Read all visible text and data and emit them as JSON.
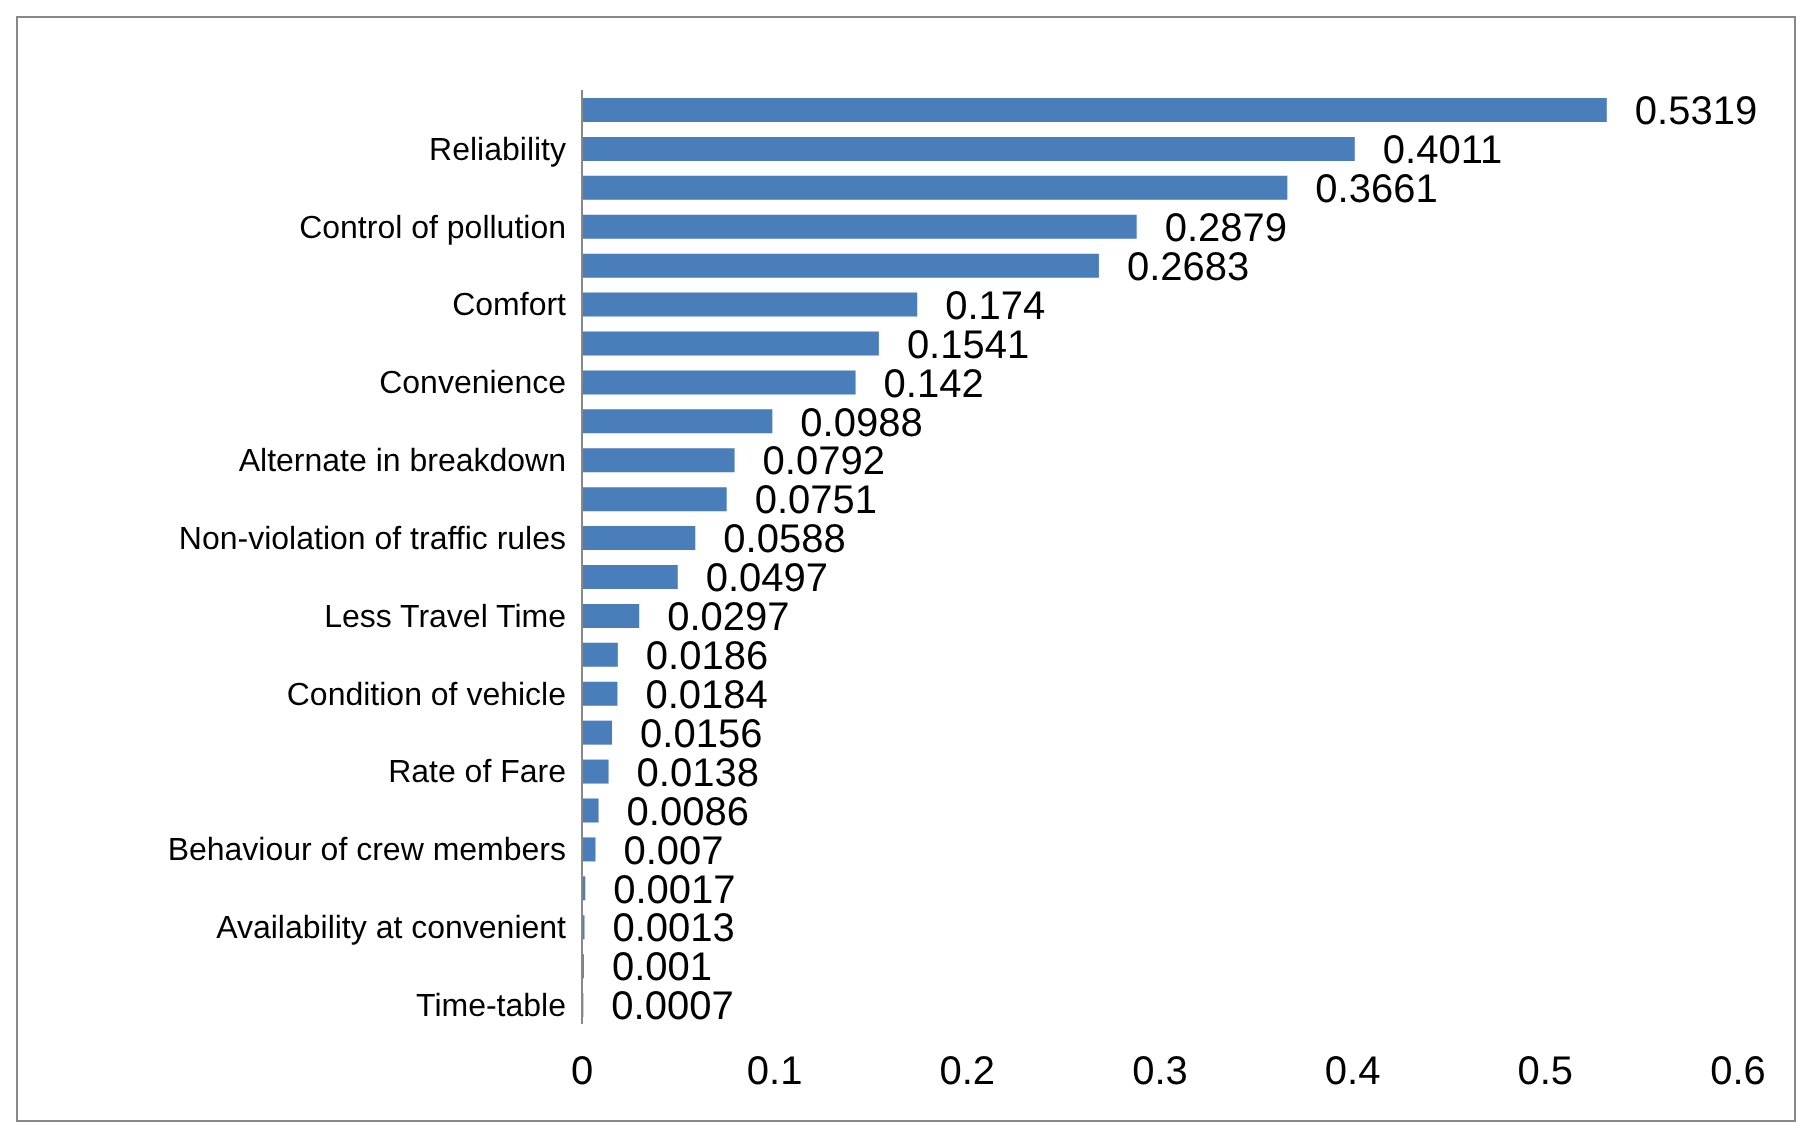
{
  "chart_data": {
    "type": "bar",
    "orientation": "horizontal",
    "categories": [
      null,
      "Reliability",
      null,
      "Control of pollution",
      null,
      "Comfort",
      null,
      "Convenience",
      null,
      "Alternate in breakdown",
      null,
      "Non-violation of traffic rules",
      null,
      "Less Travel Time",
      null,
      "Condition of vehicle",
      null,
      "Rate of Fare",
      null,
      "Behaviour of crew members",
      null,
      "Availability at convenient",
      null,
      "Time-table"
    ],
    "values": [
      0.5319,
      0.4011,
      0.3661,
      0.2879,
      0.2683,
      0.174,
      0.1541,
      0.142,
      0.0988,
      0.0792,
      0.0751,
      0.0588,
      0.0497,
      0.0297,
      0.0186,
      0.0184,
      0.0156,
      0.0138,
      0.0086,
      0.007,
      0.0017,
      0.0013,
      0.001,
      0.0007
    ],
    "color": "#4a7ebb",
    "xlim": [
      0,
      0.6
    ],
    "xticks": [
      0,
      0.1,
      0.2,
      0.3,
      0.4,
      0.5,
      0.6
    ],
    "data_labels": true
  }
}
